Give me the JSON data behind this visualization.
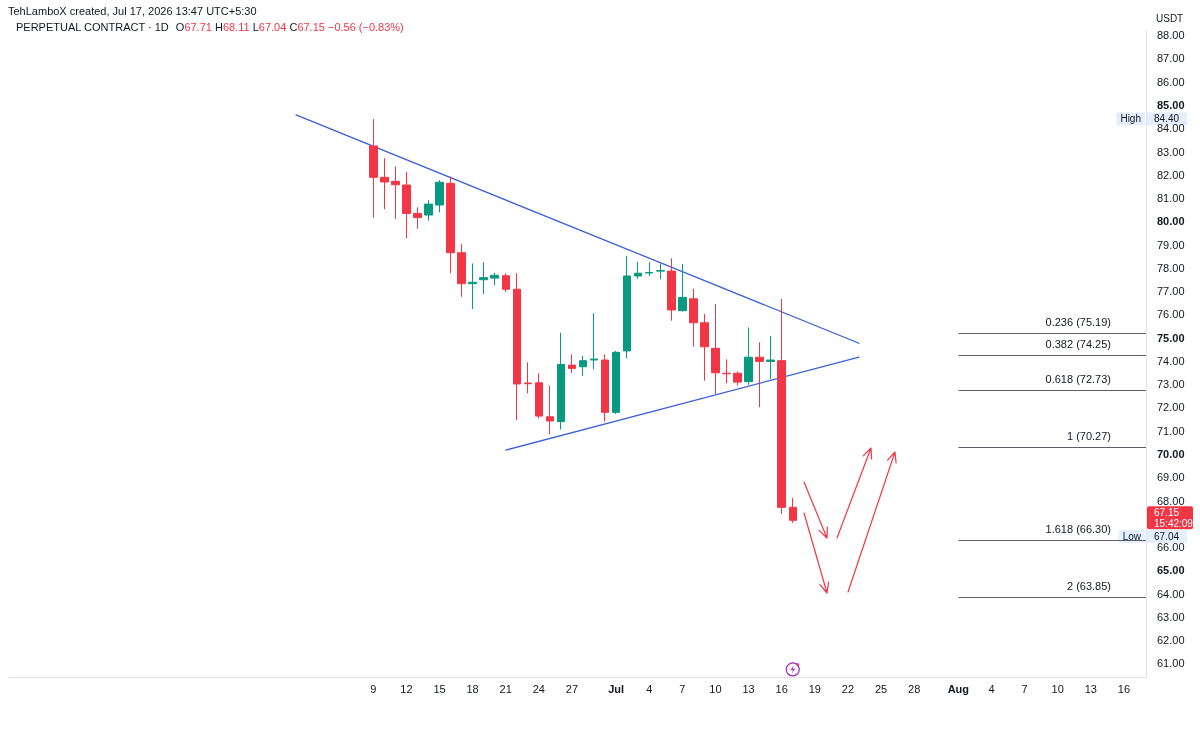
{
  "chart_data": {
    "type": "candlestick",
    "title": "PERPETUAL CONTRACT · 1D",
    "subtitle": "O67.71 H68.11 L67.04 C67.15 −0.56 (−0.83%)",
    "ylabel": "USDT",
    "annotations": [
      "TehLamboX created, Jul 17, 2026 13:47 UTC+5:30",
      "High",
      "84.40",
      "67.15",
      "15:42:09",
      "Low",
      "67.04"
    ],
    "x": [
      "2026-06-09",
      "2026-06-10",
      "2026-06-11",
      "2026-06-12",
      "2026-06-13",
      "2026-06-14",
      "2026-06-15",
      "2026-06-16",
      "2026-06-17",
      "2026-06-18",
      "2026-06-19",
      "2026-06-20",
      "2026-06-21",
      "2026-06-22",
      "2026-06-23",
      "2026-06-24",
      "2026-06-25",
      "2026-06-26",
      "2026-06-27",
      "2026-06-28",
      "2026-06-29",
      "2026-06-30",
      "2026-07-01",
      "2026-07-02",
      "2026-07-03",
      "2026-07-04",
      "2026-07-05",
      "2026-07-06",
      "2026-07-07",
      "2026-07-08",
      "2026-07-09",
      "2026-07-10",
      "2026-07-11",
      "2026-07-12",
      "2026-07-13",
      "2026-07-14",
      "2026-07-15",
      "2026-07-16",
      "2026-07-17"
    ],
    "ohlc": [
      [
        83.24,
        84.4,
        80.16,
        81.89
      ],
      [
        81.89,
        82.71,
        80.52,
        81.69
      ],
      [
        81.72,
        82.35,
        80.1,
        81.57
      ],
      [
        81.56,
        82.12,
        79.27,
        80.34
      ],
      [
        80.34,
        80.6,
        79.68,
        80.16
      ],
      [
        80.27,
        80.91,
        80.03,
        80.74
      ],
      [
        80.7,
        81.77,
        80.39,
        81.68
      ],
      [
        81.63,
        81.92,
        77.77,
        78.65
      ],
      [
        78.65,
        79.02,
        76.76,
        77.32
      ],
      [
        77.32,
        78.19,
        76.23,
        77.38
      ],
      [
        77.49,
        78.24,
        76.88,
        77.58
      ],
      [
        77.56,
        77.79,
        77.26,
        77.68
      ],
      [
        77.66,
        77.77,
        76.97,
        77.08
      ],
      [
        77.08,
        77.77,
        71.46,
        73.01
      ],
      [
        73.05,
        73.94,
        72.61,
        73.02
      ],
      [
        73.06,
        73.47,
        71.53,
        71.63
      ],
      [
        71.6,
        72.94,
        70.85,
        71.42
      ],
      [
        71.39,
        75.21,
        71.06,
        73.85
      ],
      [
        73.82,
        74.28,
        73.49,
        73.68
      ],
      [
        73.75,
        74.21,
        73.36,
        74.01
      ],
      [
        74.04,
        76.05,
        73.64,
        74.08
      ],
      [
        74.04,
        74.28,
        71.39,
        71.79
      ],
      [
        71.79,
        74.43,
        71.72,
        74.37
      ],
      [
        74.43,
        78.51,
        74.11,
        77.65
      ],
      [
        77.65,
        78.26,
        77.53,
        77.77
      ],
      [
        77.78,
        78.24,
        77.65,
        77.8
      ],
      [
        77.86,
        78.17,
        77.51,
        77.88
      ],
      [
        77.86,
        78.41,
        75.73,
        76.19
      ],
      [
        76.16,
        78.17,
        76.12,
        76.73
      ],
      [
        76.67,
        77.09,
        74.61,
        75.64
      ],
      [
        75.64,
        76.02,
        73.15,
        74.61
      ],
      [
        74.54,
        76.45,
        72.58,
        73.49
      ],
      [
        73.47,
        74.07,
        73.04,
        73.45
      ],
      [
        73.47,
        73.55,
        72.94,
        73.09
      ],
      [
        73.11,
        75.44,
        72.97,
        74.16
      ],
      [
        74.16,
        74.8,
        72.01,
        73.98
      ],
      [
        73.98,
        75.07,
        73.21,
        74.04
      ],
      [
        74.01,
        76.66,
        67.42,
        67.71
      ],
      [
        67.71,
        68.11,
        67.04,
        67.15
      ]
    ],
    "colors": [
      "#f23645",
      "#f23645",
      "#f23645",
      "#f23645",
      "#f23645",
      "#089981",
      "#089981",
      "#f23645",
      "#f23645",
      "#089981",
      "#089981",
      "#089981",
      "#f23645",
      "#f23645",
      "#f23645",
      "#f23645",
      "#f23645",
      "#089981",
      "#f23645",
      "#089981",
      "#089981",
      "#f23645",
      "#089981",
      "#089981",
      "#089981",
      "#089981",
      "#089981",
      "#f23645",
      "#089981",
      "#f23645",
      "#f23645",
      "#f23645",
      "#f23645",
      "#f23645",
      "#089981",
      "#f23645",
      "#089981",
      "#f23645",
      "#f23645"
    ],
    "series": [
      {
        "type": "line",
        "x": [
          "2026-06-02",
          "2026-07-23"
        ],
        "values": [
          84.57,
          74.76
        ],
        "color": "#3a5fd9"
      },
      {
        "type": "line",
        "x": [
          "2026-06-21",
          "2026-07-23"
        ],
        "values": [
          70.17,
          74.16
        ],
        "color": "#3a5fd9"
      }
    ],
    "ref_lines": [
      {
        "axis": "y",
        "value": 75.19,
        "label": "0.236 (75.19)",
        "color": "#5d606b"
      },
      {
        "axis": "y",
        "value": 74.25,
        "label": "0.382 (74.25)",
        "color": "#5d606b"
      },
      {
        "axis": "y",
        "value": 72.73,
        "label": "0.618 (72.73)",
        "color": "#5d606b"
      },
      {
        "axis": "y",
        "value": 70.27,
        "label": "1 (70.27)",
        "color": "#5d606b"
      },
      {
        "axis": "y",
        "value": 66.3,
        "label": "1.618 (66.30)",
        "color": "#5d606b"
      },
      {
        "axis": "y",
        "value": 63.85,
        "label": "2 (63.85)",
        "color": "#5d606b"
      }
    ],
    "xlim": [
      "2026-05-07",
      "2026-08-18"
    ],
    "xticks": [
      {
        "value": "2026-06-09",
        "label": "9"
      },
      {
        "value": "2026-06-12",
        "label": "12"
      },
      {
        "value": "2026-06-15",
        "label": "15"
      },
      {
        "value": "2026-06-18",
        "label": "18"
      },
      {
        "value": "2026-06-21",
        "label": "21"
      },
      {
        "value": "2026-06-24",
        "label": "24"
      },
      {
        "value": "2026-06-27",
        "label": "27"
      },
      {
        "value": "2026-07-01",
        "label": "Jul"
      },
      {
        "value": "2026-07-04",
        "label": "4"
      },
      {
        "value": "2026-07-07",
        "label": "7"
      },
      {
        "value": "2026-07-10",
        "label": "10"
      },
      {
        "value": "2026-07-13",
        "label": "13"
      },
      {
        "value": "2026-07-16",
        "label": "16"
      },
      {
        "value": "2026-07-19",
        "label": "19"
      },
      {
        "value": "2026-07-22",
        "label": "22"
      },
      {
        "value": "2026-07-25",
        "label": "25"
      },
      {
        "value": "2026-07-28",
        "label": "28"
      },
      {
        "value": "2026-08-01",
        "label": "Aug"
      },
      {
        "value": "2026-08-04",
        "label": "4"
      },
      {
        "value": "2026-08-07",
        "label": "7"
      },
      {
        "value": "2026-08-10",
        "label": "10"
      },
      {
        "value": "2026-08-13",
        "label": "13"
      },
      {
        "value": "2026-08-16",
        "label": "16"
      }
    ],
    "ylim": [
      60.4,
      88.2
    ],
    "yticks": [
      {
        "value": 61,
        "label": "61.00"
      },
      {
        "value": 62,
        "label": "62.00"
      },
      {
        "value": 63,
        "label": "63.00"
      },
      {
        "value": 64,
        "label": "64.00"
      },
      {
        "value": 65,
        "label": "65.00"
      },
      {
        "value": 66,
        "label": "66.00"
      },
      {
        "value": 68,
        "label": "68.00"
      },
      {
        "value": 69,
        "label": "69.00"
      },
      {
        "value": 70,
        "label": "70.00"
      },
      {
        "value": 71,
        "label": "71.00"
      },
      {
        "value": 72,
        "label": "72.00"
      },
      {
        "value": 73,
        "label": "73.00"
      },
      {
        "value": 74,
        "label": "74.00"
      },
      {
        "value": 75,
        "label": "75.00"
      },
      {
        "value": 76,
        "label": "76.00"
      },
      {
        "value": 77,
        "label": "77.00"
      },
      {
        "value": 78,
        "label": "78.00"
      },
      {
        "value": 79,
        "label": "79.00"
      },
      {
        "value": 80,
        "label": "80.00"
      },
      {
        "value": 81,
        "label": "81.00"
      },
      {
        "value": 82,
        "label": "82.00"
      },
      {
        "value": 83,
        "label": "83.00"
      },
      {
        "value": 84,
        "label": "84.00"
      },
      {
        "value": 85,
        "label": "85.00"
      },
      {
        "value": 86,
        "label": "86.00"
      },
      {
        "value": 87,
        "label": "87.00"
      },
      {
        "value": 88,
        "label": "88.00"
      }
    ],
    "grid": false,
    "marker": "none"
  }
}
